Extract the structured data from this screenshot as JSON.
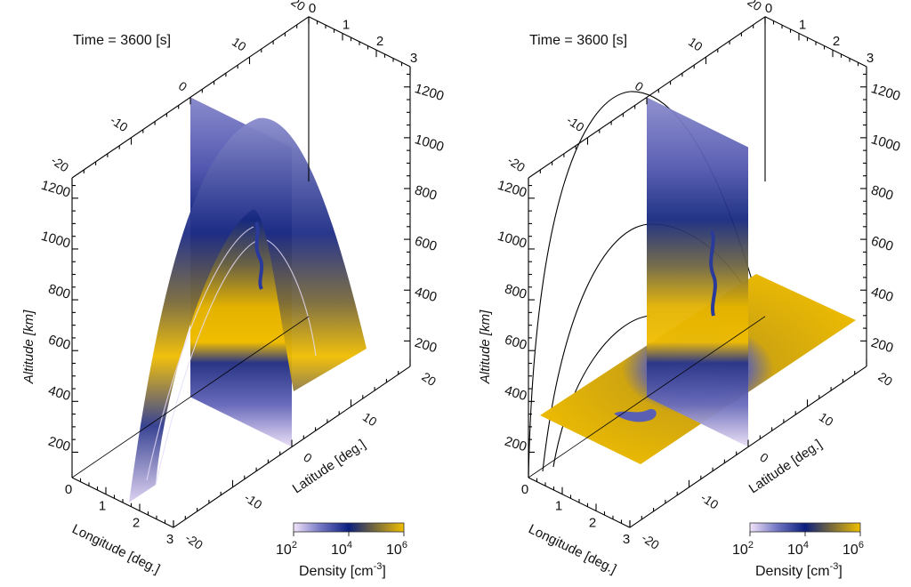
{
  "colors": {
    "low": "#f3e4fa",
    "mid_low": "#7074c2",
    "mid": "#0b1f7e",
    "mid_high": "#6f6440",
    "high": "#f0be00"
  },
  "chart_data": [
    {
      "type": "heatmap",
      "panel": "left",
      "title": "Time =  3600 [s]",
      "xlabel": "Longitude [deg.]",
      "ylabel": "Latitude [deg.]",
      "zlabel": "Altitude [km]",
      "xlim": [
        0,
        3
      ],
      "ylim": [
        -20,
        20
      ],
      "zlim": [
        100,
        1280
      ],
      "xticks": [
        "0",
        "1",
        "2",
        "3"
      ],
      "yticks": [
        "-20",
        "-10",
        "0",
        "10",
        "20"
      ],
      "zticks": [
        "200",
        "400",
        "600",
        "800",
        "1000",
        "1200"
      ],
      "slices": [
        "vertical plane at latitude 0",
        "curved field-aligned surface"
      ],
      "colorbar": {
        "label": "Density [cm",
        "label_exp": "-3",
        "label_end": "]",
        "scale": "log",
        "range": [
          100,
          1000000
        ],
        "ticks": [
          {
            "base": "10",
            "exp": "2"
          },
          {
            "base": "10",
            "exp": "4"
          },
          {
            "base": "10",
            "exp": "6"
          }
        ]
      }
    },
    {
      "type": "heatmap",
      "panel": "right",
      "title": "Time =  3600 [s]",
      "xlabel": "Longitude [deg.]",
      "ylabel": "Latitude [deg.]",
      "zlabel": "Altitude [km]",
      "xlim": [
        0,
        3
      ],
      "ylim": [
        -20,
        20
      ],
      "zlim": [
        100,
        1280
      ],
      "xticks": [
        "0",
        "1",
        "2",
        "3"
      ],
      "yticks": [
        "-20",
        "-10",
        "0",
        "10",
        "20"
      ],
      "zticks": [
        "200",
        "400",
        "600",
        "800",
        "1000",
        "1200"
      ],
      "slices": [
        "vertical plane at latitude 0",
        "horizontal plane",
        "magnetic field lines"
      ],
      "colorbar": {
        "label": "Density [cm",
        "label_exp": "-3",
        "label_end": "]",
        "scale": "log",
        "range": [
          100,
          1000000
        ],
        "ticks": [
          {
            "base": "10",
            "exp": "2"
          },
          {
            "base": "10",
            "exp": "4"
          },
          {
            "base": "10",
            "exp": "6"
          }
        ]
      }
    }
  ]
}
